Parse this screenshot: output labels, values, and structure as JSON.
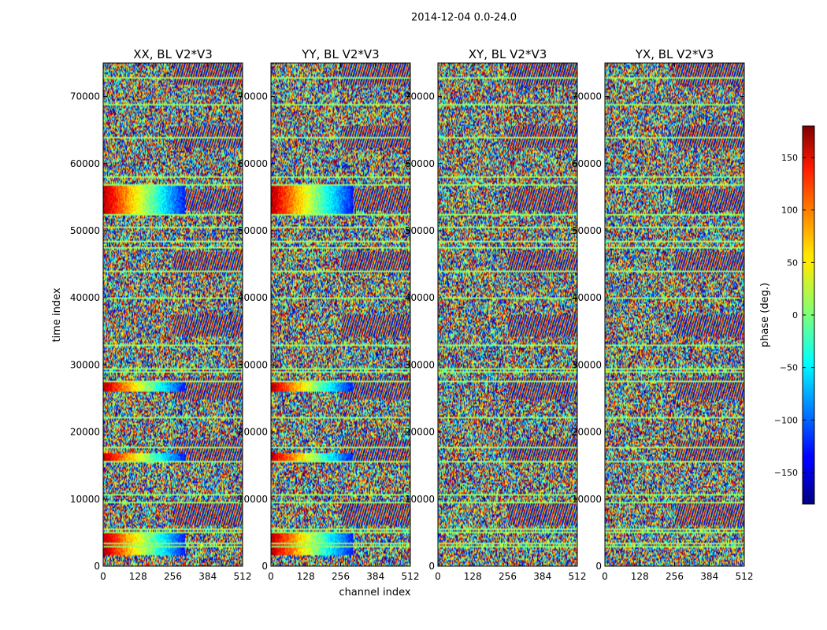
{
  "figure_title": "2014-12-04 0.0-24.0",
  "chart_data": {
    "type": "heatmap",
    "title": "2014-12-04 0.0-24.0",
    "xlabel": "channel index",
    "ylabel": "time index",
    "xlim": [
      0,
      512
    ],
    "ylim": [
      0,
      75000
    ],
    "x_ticks": [
      0,
      128,
      256,
      384,
      512
    ],
    "y_ticks": [
      0,
      10000,
      20000,
      30000,
      40000,
      50000,
      60000,
      70000
    ],
    "panels": [
      {
        "title": "XX, BL V2*V3",
        "pol": "XX"
      },
      {
        "title": "YY, BL V2*V3",
        "pol": "YY"
      },
      {
        "title": "XY, BL V2*V3",
        "pol": "XY"
      },
      {
        "title": "YX, BL V2*V3",
        "pol": "YX"
      }
    ],
    "colorbar": {
      "label": "phase (deg.)",
      "range": [
        -180,
        180
      ],
      "ticks": [
        -150,
        -100,
        -50,
        0,
        50,
        100,
        150
      ],
      "tick_labels": [
        "−150",
        "−100",
        "−50",
        "0",
        "50",
        "100",
        "150"
      ],
      "colormap": "jet"
    },
    "flagged_rows_time_index": [
      2900,
      3300,
      5000,
      5500,
      9500,
      10600,
      15500,
      17600,
      22000,
      27500,
      29000,
      29500,
      33000,
      40000,
      44000,
      47600,
      48500,
      50500,
      52500,
      57000,
      58000,
      64000,
      68800,
      73000
    ],
    "coherent_phase_bands": [
      {
        "panels": [
          "XX",
          "YY"
        ],
        "time_start": 52500,
        "time_end": 57000,
        "channel_end": 300
      },
      {
        "panels": [
          "XX",
          "YY"
        ],
        "time_start": 26000,
        "time_end": 27500,
        "channel_end": 300
      },
      {
        "panels": [
          "XX",
          "YY"
        ],
        "time_start": 15500,
        "time_end": 16800,
        "channel_end": 300
      },
      {
        "panels": [
          "XX",
          "YY"
        ],
        "time_start": 1500,
        "time_end": 5000,
        "channel_end": 300
      }
    ]
  }
}
